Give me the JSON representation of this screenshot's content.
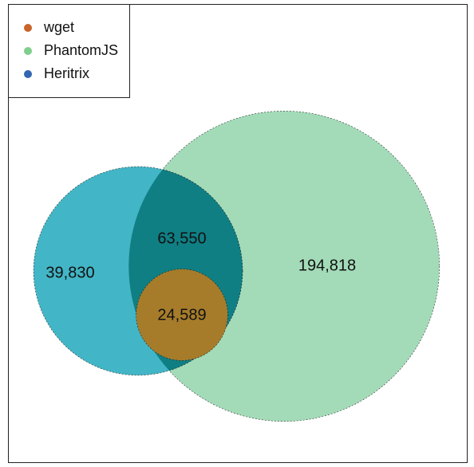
{
  "chart_data": {
    "type": "venn",
    "series": [
      {
        "name": "wget",
        "color": "#c8652a"
      },
      {
        "name": "PhantomJS",
        "color": "#7fcf8c"
      },
      {
        "name": "Heritrix",
        "color": "#3366b0"
      }
    ],
    "values": [
      39830,
      63550,
      24589,
      194818
    ],
    "value_labels": [
      "39,830",
      "63,550",
      "24,589",
      "194,818"
    ],
    "region_colors": [
      "#42b5c6",
      "#0f7f84",
      "#a67c2a",
      "#a3dbb8"
    ],
    "legend": "top-left"
  }
}
